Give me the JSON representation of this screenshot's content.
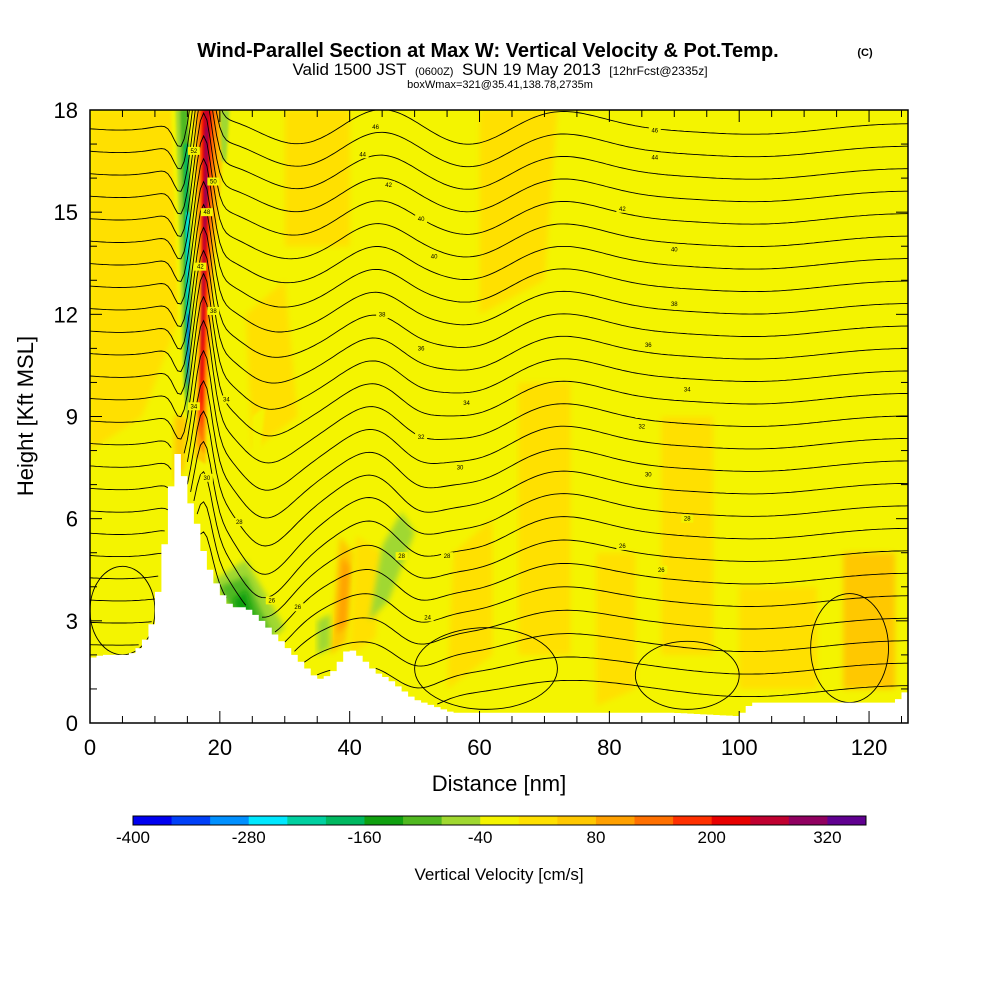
{
  "header": {
    "title": "Wind-Parallel Section at Max W: Vertical Velocity & Pot.Temp.",
    "title_mark": "(C)",
    "valid_prefix": "Valid 1500 JST",
    "valid_utc": "(0600Z)",
    "valid_date": "SUN 19 May 2013",
    "forecast_tag": "[12hrFcst@2335z]",
    "box_info": "boxWmax=321@35.41,138.78,2735m"
  },
  "chart_data": {
    "type": "heatmap",
    "xlabel": "Distance [nm]",
    "ylabel": "Height [Kft MSL]",
    "xlim": [
      0,
      126
    ],
    "ylim": [
      0,
      18
    ],
    "x_ticks": [
      0,
      20,
      40,
      60,
      80,
      100,
      120
    ],
    "y_ticks": [
      0,
      3,
      6,
      9,
      12,
      15,
      18
    ],
    "colorbar": {
      "label": "Vertical Velocity [cm/s]",
      "range": [
        -400,
        360
      ],
      "tick_values": [
        -400,
        -280,
        -160,
        -40,
        80,
        200,
        320
      ],
      "colors": [
        "#0000f0",
        "#0040f8",
        "#0090ff",
        "#00e8ff",
        "#00d0a0",
        "#00b860",
        "#10a010",
        "#50b820",
        "#a0d830",
        "#f4f400",
        "#ffe000",
        "#ffc800",
        "#ffa000",
        "#ff7000",
        "#ff3000",
        "#e80000",
        "#c00030",
        "#900060",
        "#600090"
      ]
    },
    "terrain_kft": [
      {
        "x": 0,
        "z": 1.9
      },
      {
        "x": 2,
        "z": 2.0
      },
      {
        "x": 4,
        "z": 2.0
      },
      {
        "x": 6,
        "z": 2.0
      },
      {
        "x": 7,
        "z": 2.1
      },
      {
        "x": 8,
        "z": 2.3
      },
      {
        "x": 9,
        "z": 2.6
      },
      {
        "x": 10,
        "z": 3.2
      },
      {
        "x": 11,
        "z": 4.5
      },
      {
        "x": 12,
        "z": 6.0
      },
      {
        "x": 13,
        "z": 7.9
      },
      {
        "x": 14,
        "z": 7.9
      },
      {
        "x": 15,
        "z": 6.6
      },
      {
        "x": 16,
        "z": 6.3
      },
      {
        "x": 17,
        "z": 5.4
      },
      {
        "x": 18,
        "z": 4.7
      },
      {
        "x": 19,
        "z": 4.3
      },
      {
        "x": 20,
        "z": 3.9
      },
      {
        "x": 21,
        "z": 3.6
      },
      {
        "x": 22,
        "z": 3.4
      },
      {
        "x": 24,
        "z": 3.4
      },
      {
        "x": 26,
        "z": 3.1
      },
      {
        "x": 28,
        "z": 2.7
      },
      {
        "x": 30,
        "z": 2.3
      },
      {
        "x": 32,
        "z": 1.9
      },
      {
        "x": 34,
        "z": 1.5
      },
      {
        "x": 35,
        "z": 1.3
      },
      {
        "x": 36,
        "z": 1.3
      },
      {
        "x": 38,
        "z": 1.6
      },
      {
        "x": 39,
        "z": 2.0
      },
      {
        "x": 40,
        "z": 2.2
      },
      {
        "x": 42,
        "z": 1.9
      },
      {
        "x": 44,
        "z": 1.5
      },
      {
        "x": 46,
        "z": 1.3
      },
      {
        "x": 48,
        "z": 1.0
      },
      {
        "x": 50,
        "z": 0.7
      },
      {
        "x": 53,
        "z": 0.5
      },
      {
        "x": 56,
        "z": 0.3
      },
      {
        "x": 60,
        "z": 0.3
      },
      {
        "x": 64,
        "z": 0.3
      },
      {
        "x": 70,
        "z": 0.3
      },
      {
        "x": 80,
        "z": 0.3
      },
      {
        "x": 90,
        "z": 0.3
      },
      {
        "x": 100,
        "z": 0.2
      },
      {
        "x": 102,
        "z": 0.6
      },
      {
        "x": 110,
        "z": 0.6
      },
      {
        "x": 118,
        "z": 0.6
      },
      {
        "x": 124,
        "z": 0.6
      },
      {
        "x": 126,
        "z": 1.0
      }
    ],
    "theta_levels": [
      26,
      28,
      30,
      32,
      34,
      36,
      38,
      40,
      42,
      44,
      46,
      48,
      50,
      52,
      54
    ],
    "contour_labels": [
      {
        "x": 44,
        "z": 17.5,
        "text": "46"
      },
      {
        "x": 42,
        "z": 16.7,
        "text": "44"
      },
      {
        "x": 46,
        "z": 15.8,
        "text": "42"
      },
      {
        "x": 51,
        "z": 14.8,
        "text": "40"
      },
      {
        "x": 53,
        "z": 13.7,
        "text": "40"
      },
      {
        "x": 45,
        "z": 12.0,
        "text": "38"
      },
      {
        "x": 51,
        "z": 11.0,
        "text": "36"
      },
      {
        "x": 58,
        "z": 9.4,
        "text": "34"
      },
      {
        "x": 51,
        "z": 8.4,
        "text": "32"
      },
      {
        "x": 57,
        "z": 7.5,
        "text": "30"
      },
      {
        "x": 48,
        "z": 4.9,
        "text": "28"
      },
      {
        "x": 55,
        "z": 4.9,
        "text": "28"
      },
      {
        "x": 52,
        "z": 3.1,
        "text": "24"
      },
      {
        "x": 87,
        "z": 17.4,
        "text": "46"
      },
      {
        "x": 87,
        "z": 16.6,
        "text": "44"
      },
      {
        "x": 82,
        "z": 15.1,
        "text": "42"
      },
      {
        "x": 90,
        "z": 13.9,
        "text": "40"
      },
      {
        "x": 90,
        "z": 12.3,
        "text": "38"
      },
      {
        "x": 86,
        "z": 11.1,
        "text": "36"
      },
      {
        "x": 92,
        "z": 9.8,
        "text": "34"
      },
      {
        "x": 85,
        "z": 8.7,
        "text": "32"
      },
      {
        "x": 86,
        "z": 7.3,
        "text": "30"
      },
      {
        "x": 92,
        "z": 6.0,
        "text": "28"
      },
      {
        "x": 82,
        "z": 5.2,
        "text": "26"
      },
      {
        "x": 88,
        "z": 4.5,
        "text": "26"
      },
      {
        "x": 16,
        "z": 16.8,
        "text": "52"
      },
      {
        "x": 19,
        "z": 15.9,
        "text": "50"
      },
      {
        "x": 18,
        "z": 15.0,
        "text": "48"
      },
      {
        "x": 17,
        "z": 13.4,
        "text": "42"
      },
      {
        "x": 19,
        "z": 12.1,
        "text": "38"
      },
      {
        "x": 16,
        "z": 9.3,
        "text": "34"
      },
      {
        "x": 21,
        "z": 9.5,
        "text": "34"
      },
      {
        "x": 18,
        "z": 7.2,
        "text": "30"
      },
      {
        "x": 23,
        "z": 5.9,
        "text": "28"
      },
      {
        "x": 28,
        "z": 3.6,
        "text": "26"
      },
      {
        "x": 32,
        "z": 3.4,
        "text": "26"
      }
    ]
  }
}
